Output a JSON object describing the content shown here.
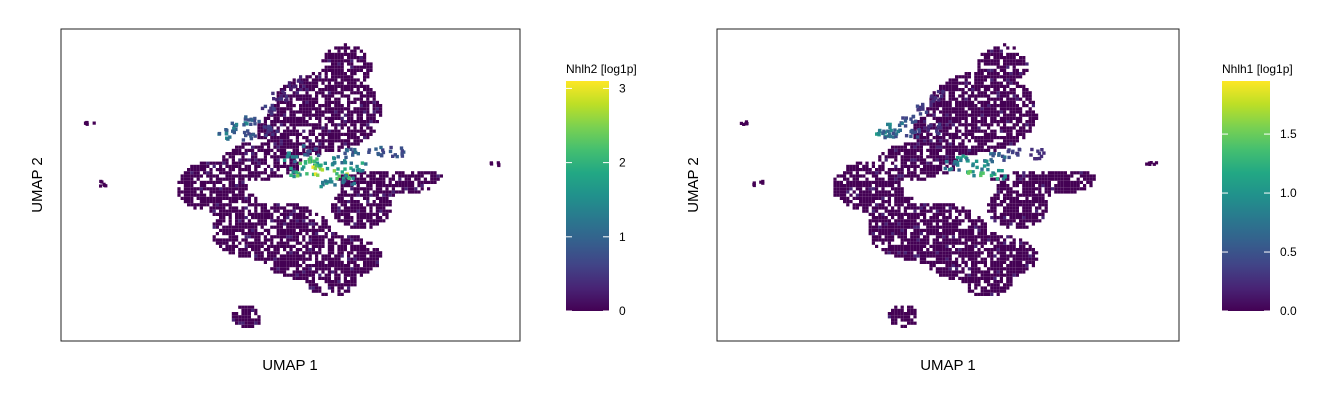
{
  "chart_data": [
    {
      "type": "scatter",
      "title": "",
      "xlabel": "UMAP 1",
      "ylabel": "UMAP 2",
      "color_variable": "Nhlh2 [log1p]",
      "colormap": "viridis",
      "color_range": [
        0,
        3.1
      ],
      "colorbar_ticks": [
        0,
        1,
        2,
        3
      ],
      "colorbar_tick_labels": [
        "0",
        "1",
        "2",
        "3"
      ],
      "grid": false,
      "legend": "right colorbar",
      "bins": [
        {
          "x": 13.6,
          "y": 9.7,
          "value": 0.35
        },
        {
          "x": 12.8,
          "y": 9.0,
          "value": 0.45
        },
        {
          "x": 12.0,
          "y": 8.2,
          "value": 0.7
        },
        {
          "x": 11.1,
          "y": 7.5,
          "value": 1.1
        },
        {
          "x": 10.4,
          "y": 7.1,
          "value": 1.4
        },
        {
          "x": 12.3,
          "y": 6.9,
          "value": 0.6
        },
        {
          "x": 9.6,
          "y": 6.7,
          "value": 1.5
        },
        {
          "x": 11.0,
          "y": 6.6,
          "value": 0.9
        },
        {
          "x": 13.5,
          "y": 5.3,
          "value": 1.6
        },
        {
          "x": 14.4,
          "y": 5.0,
          "value": 2.6
        },
        {
          "x": 15.2,
          "y": 4.9,
          "value": 2.2
        },
        {
          "x": 16.2,
          "y": 5.1,
          "value": 1.7
        },
        {
          "x": 17.0,
          "y": 5.5,
          "value": 1.2
        },
        {
          "x": 18.4,
          "y": 5.6,
          "value": 1.0
        },
        {
          "x": 19.6,
          "y": 5.6,
          "value": 0.9
        },
        {
          "x": 14.9,
          "y": 4.5,
          "value": 3.0
        },
        {
          "x": 13.9,
          "y": 4.4,
          "value": 2.4
        },
        {
          "x": 16.4,
          "y": 4.3,
          "value": 2.9
        },
        {
          "x": 17.4,
          "y": 4.7,
          "value": 1.9
        },
        {
          "x": 16.8,
          "y": 3.9,
          "value": 1.6
        },
        {
          "x": 14.6,
          "y": 5.7,
          "value": 1.1
        },
        {
          "x": 15.6,
          "y": 3.8,
          "value": 1.8
        }
      ]
    },
    {
      "type": "scatter",
      "title": "",
      "xlabel": "UMAP 1",
      "ylabel": "UMAP 2",
      "color_variable": "Nhlh1 [log1p]",
      "colormap": "viridis",
      "color_range": [
        0,
        1.95
      ],
      "colorbar_ticks": [
        0.0,
        0.5,
        1.0,
        1.5
      ],
      "colorbar_tick_labels": [
        "0.0",
        "0.5",
        "1.0",
        "1.5"
      ],
      "grid": false,
      "legend": "right colorbar",
      "bins": [
        {
          "x": 12.8,
          "y": 9.0,
          "value": 0.3
        },
        {
          "x": 12.0,
          "y": 8.2,
          "value": 0.45
        },
        {
          "x": 11.1,
          "y": 7.5,
          "value": 0.6
        },
        {
          "x": 10.3,
          "y": 7.1,
          "value": 0.95
        },
        {
          "x": 9.6,
          "y": 6.8,
          "value": 1.05
        },
        {
          "x": 10.0,
          "y": 6.6,
          "value": 0.8
        },
        {
          "x": 11.3,
          "y": 6.8,
          "value": 0.55
        },
        {
          "x": 12.5,
          "y": 7.0,
          "value": 0.4
        },
        {
          "x": 14.4,
          "y": 5.1,
          "value": 1.2
        },
        {
          "x": 15.3,
          "y": 4.8,
          "value": 1.1
        },
        {
          "x": 16.3,
          "y": 5.3,
          "value": 0.7
        },
        {
          "x": 17.2,
          "y": 5.5,
          "value": 0.45
        },
        {
          "x": 15.0,
          "y": 4.4,
          "value": 1.5
        },
        {
          "x": 16.3,
          "y": 4.2,
          "value": 1.3
        },
        {
          "x": 13.6,
          "y": 4.8,
          "value": 0.9
        },
        {
          "x": 18.6,
          "y": 5.5,
          "value": 0.3
        }
      ]
    }
  ]
}
